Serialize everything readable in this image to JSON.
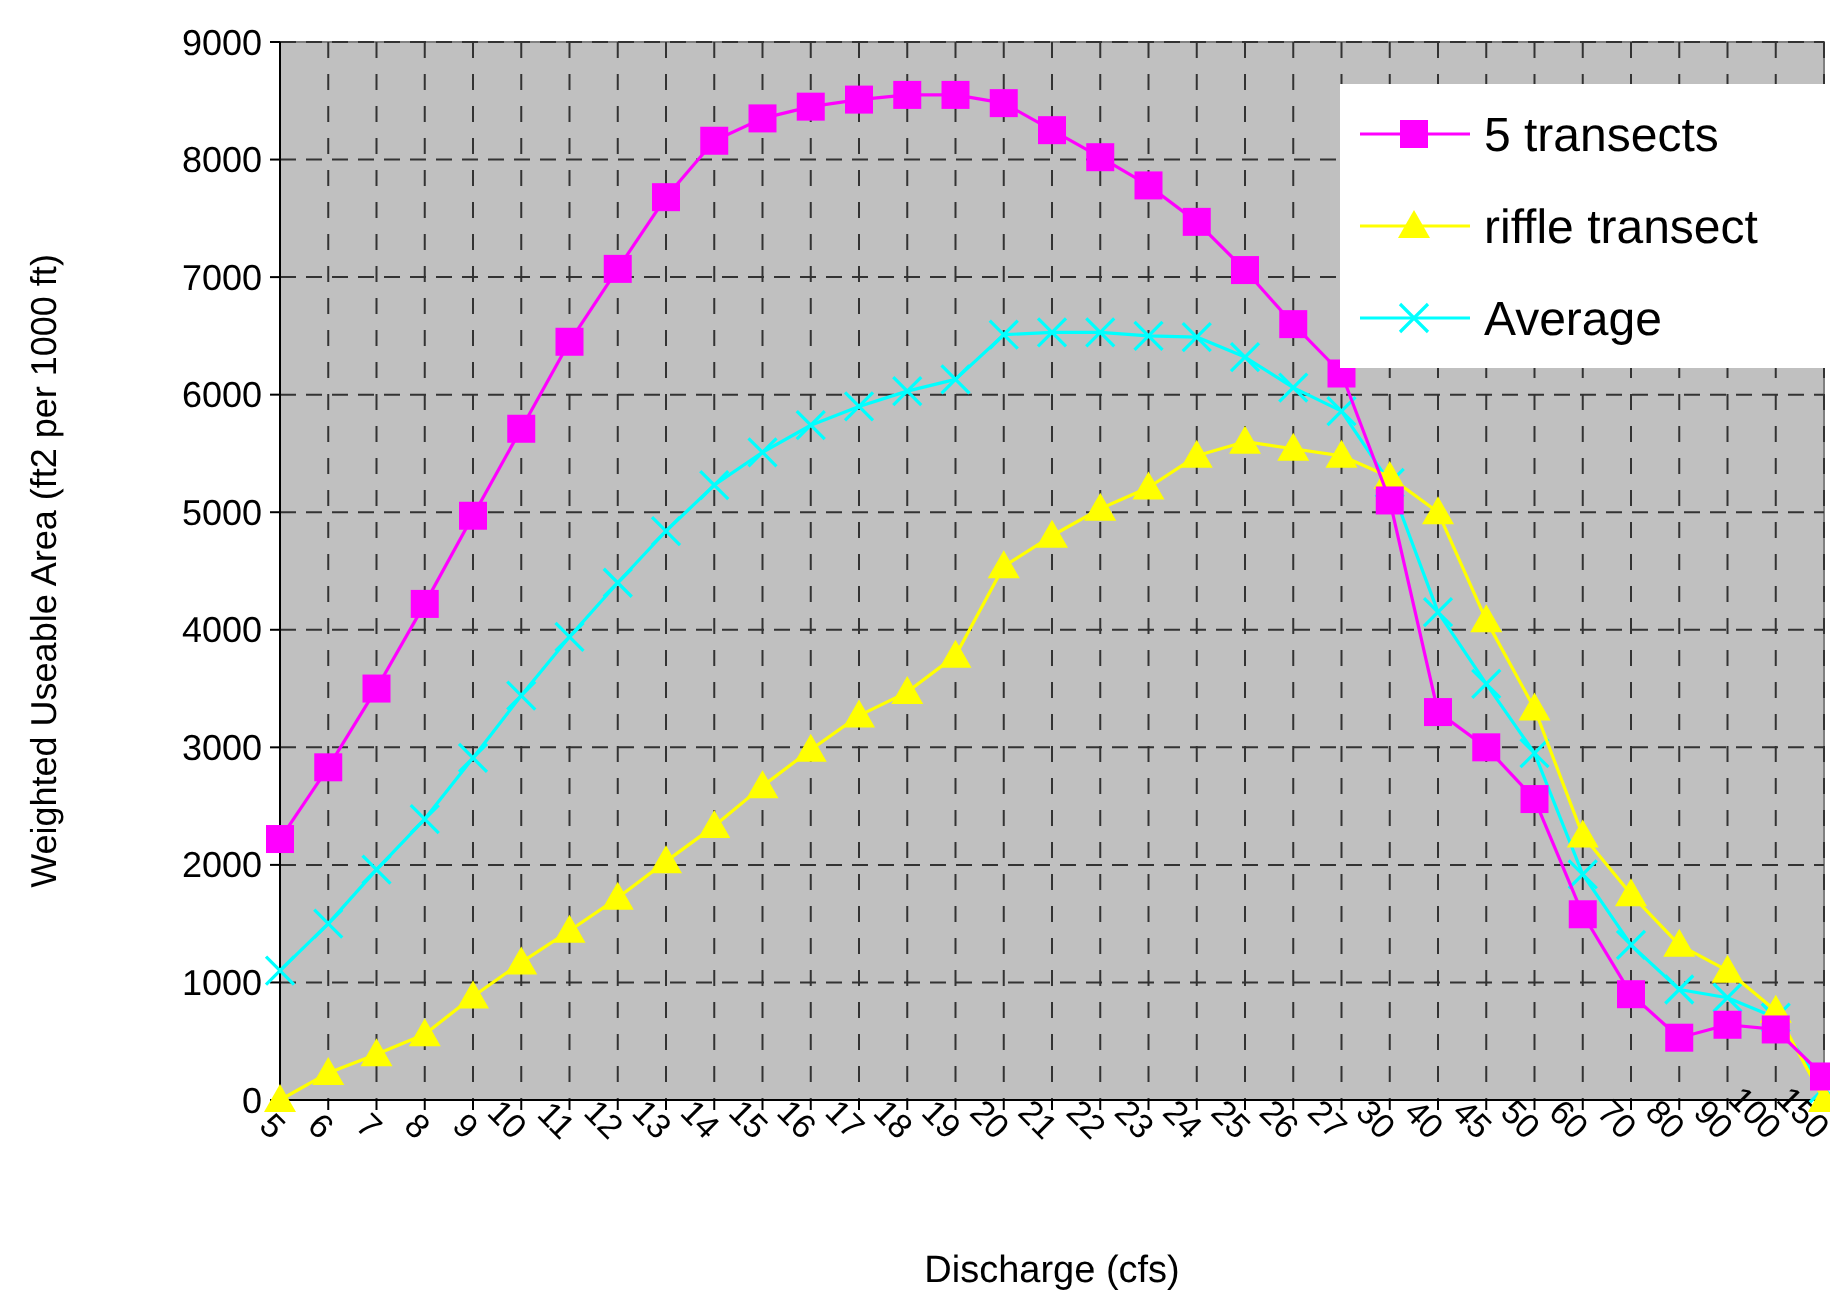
{
  "chart_data": {
    "type": "line",
    "xlabel": "Discharge (cfs)",
    "ylabel": "Weighted Useable Area (ft2 per 1000 ft)",
    "categories": [
      "5",
      "6",
      "7",
      "8",
      "9",
      "10",
      "11",
      "12",
      "13",
      "14",
      "15",
      "16",
      "17",
      "18",
      "19",
      "20",
      "21",
      "22",
      "23",
      "24",
      "25",
      "26",
      "27",
      "30",
      "40",
      "45",
      "50",
      "60",
      "70",
      "80",
      "90",
      "100",
      "150"
    ],
    "series": [
      {
        "name": "5 transects",
        "color": "#ff00ff",
        "marker": "square",
        "values": [
          2220,
          2830,
          3500,
          4220,
          4970,
          5710,
          6450,
          7070,
          7680,
          8160,
          8350,
          8450,
          8510,
          8550,
          8550,
          8480,
          8250,
          8020,
          7780,
          7470,
          7060,
          6600,
          6180,
          5100,
          3300,
          3000,
          2560,
          1580,
          900,
          530,
          640,
          600,
          200
        ]
      },
      {
        "name": "riffle transect",
        "color": "#ffff00",
        "marker": "triangle",
        "values": [
          0,
          230,
          390,
          560,
          880,
          1170,
          1440,
          1720,
          2030,
          2330,
          2670,
          2980,
          3270,
          3470,
          3780,
          4540,
          4800,
          5030,
          5210,
          5480,
          5600,
          5540,
          5480,
          5300,
          5000,
          4080,
          3330,
          2250,
          1750,
          1320,
          1100,
          760,
          0
        ]
      },
      {
        "name": "Average",
        "color": "#00ffff",
        "marker": "cross",
        "values": [
          1100,
          1500,
          1960,
          2390,
          2910,
          3440,
          3940,
          4400,
          4840,
          5230,
          5510,
          5740,
          5900,
          6030,
          6130,
          6510,
          6530,
          6530,
          6500,
          6490,
          6320,
          6060,
          5860,
          5250,
          4150,
          3540,
          2950,
          1920,
          1320,
          940,
          870,
          700,
          100
        ]
      }
    ],
    "ylim": [
      0,
      9000
    ],
    "yticks": [
      0,
      1000,
      2000,
      3000,
      4000,
      5000,
      6000,
      7000,
      8000,
      9000
    ],
    "grid": true,
    "legend": "top right",
    "line_style": "solid"
  }
}
